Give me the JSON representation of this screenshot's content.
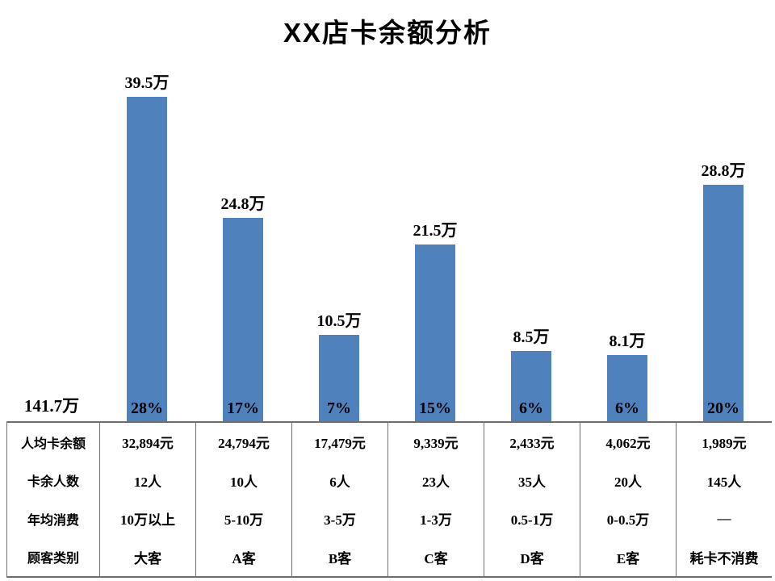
{
  "title": "XX店卡余额分析",
  "total_label": "141.7万",
  "colors": {
    "bar_fill": "#4F81BD",
    "text": "#000000",
    "table_border": "#6e6e6e",
    "background": "#ffffff"
  },
  "chart_data": {
    "type": "bar",
    "title": "XX店卡余额分析",
    "categories": [
      "大客",
      "A客",
      "B客",
      "C客",
      "D客",
      "E客",
      "耗卡不消费"
    ],
    "values": [
      39.5,
      24.8,
      10.5,
      21.5,
      8.5,
      8.1,
      28.8
    ],
    "value_labels": [
      "39.5万",
      "24.8万",
      "10.5万",
      "21.5万",
      "8.5万",
      "8.1万",
      "28.8万"
    ],
    "percent_labels": [
      "28%",
      "17%",
      "7%",
      "15%",
      "6%",
      "6%",
      "20%"
    ],
    "total_label": "141.7万",
    "unit": "万",
    "xlabel": "",
    "ylabel": "",
    "ylim": [
      0,
      39.5
    ],
    "grid": false,
    "legend": false,
    "bar_color": "#4F81BD"
  },
  "table": {
    "row_headers": [
      "人均卡余额",
      "卡余人数",
      "年均消费",
      "顾客类别"
    ],
    "rows": [
      [
        "32,894元",
        "24,794元",
        "17,479元",
        "9,339元",
        "2,433元",
        "4,062元",
        "1,989元"
      ],
      [
        "12人",
        "10人",
        "6人",
        "23人",
        "35人",
        "20人",
        "145人"
      ],
      [
        "10万以上",
        "5-10万",
        "3-5万",
        "1-3万",
        "0.5-1万",
        "0-0.5万",
        "—"
      ],
      [
        "大客",
        "A客",
        "B客",
        "C客",
        "D客",
        "E客",
        "耗卡不消费"
      ]
    ]
  }
}
